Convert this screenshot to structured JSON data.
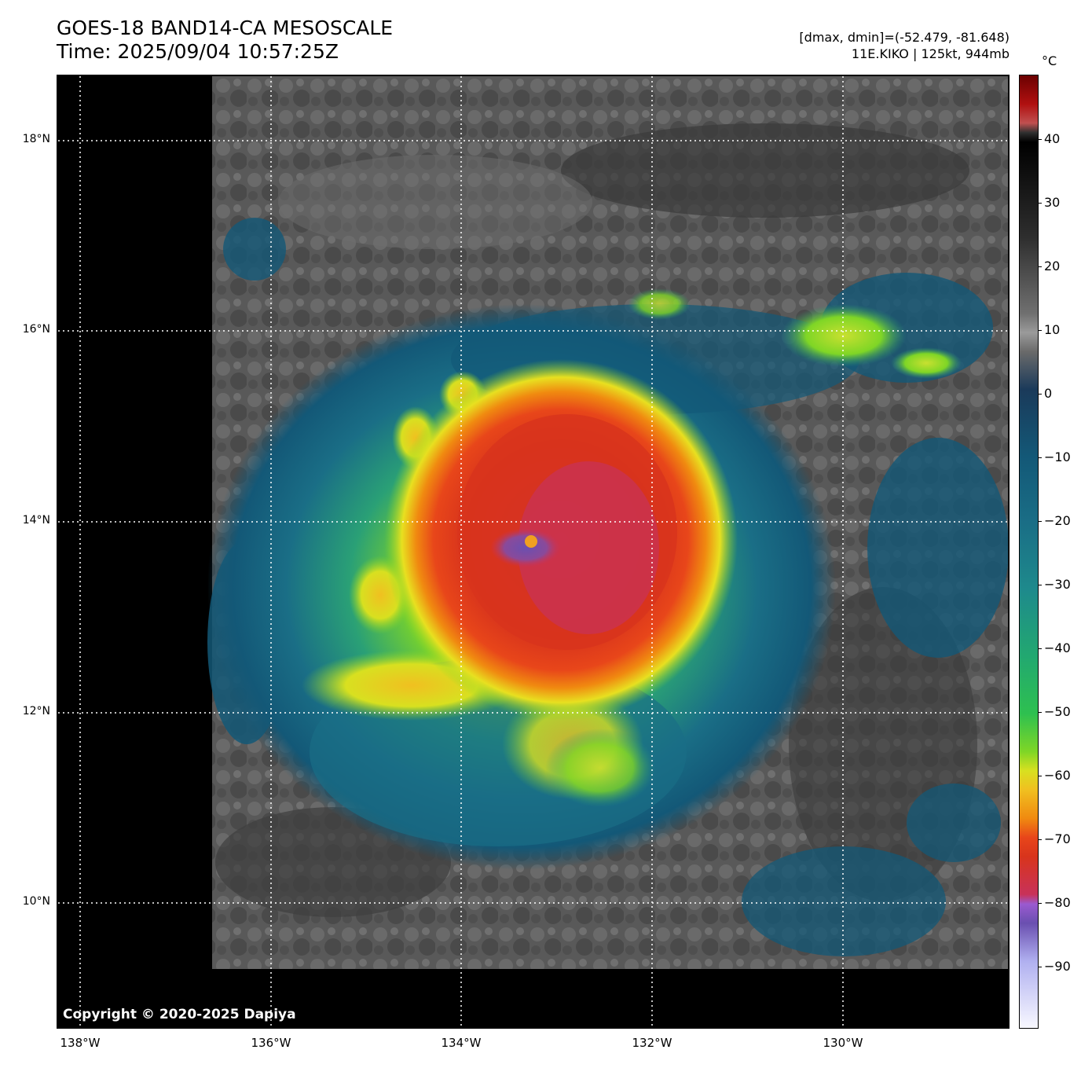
{
  "header": {
    "title_line1": "GOES-18 BAND14-CA MESOSCALE",
    "title_line2": "Time: 2025/09/04 10:57:25Z",
    "info_line1": "[dmax, dmin]=(-52.479, -81.648)",
    "info_line2": "11E.KIKO | 125kt, 944mb"
  },
  "map": {
    "copyright": "Copyright © 2020-2025 Dapiya",
    "lat_labels": [
      "18°N",
      "16°N",
      "14°N",
      "12°N",
      "10°N"
    ],
    "lon_labels": [
      "138°W",
      "136°W",
      "134°W",
      "132°W",
      "130°W"
    ]
  },
  "colorbar": {
    "unit": "°C",
    "ticks": [
      "40",
      "30",
      "20",
      "10",
      "0",
      "−10",
      "−20",
      "−30",
      "−40",
      "−50",
      "−60",
      "−70",
      "−80",
      "−90"
    ]
  },
  "colors": {
    "eye_purple": "#6a4fb0",
    "core_red": "#d8341c",
    "ring_orange": "#f08a10",
    "ring_yellow": "#e8e020",
    "band_green": "#7fd626",
    "band_teal": "#1e8a8c",
    "outer_blue": "#135877",
    "clear_grey": "#5a5a5a"
  }
}
